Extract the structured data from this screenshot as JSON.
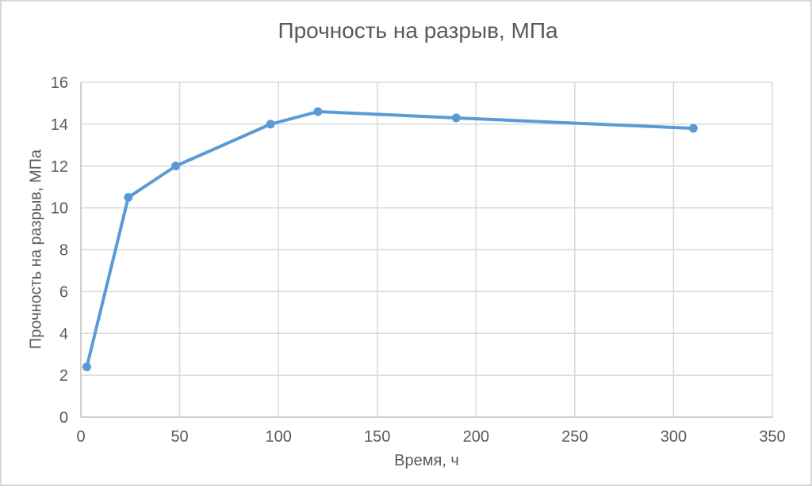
{
  "chart_data": {
    "type": "line",
    "title": "Прочность на разрыв, МПа",
    "xlabel": "Время, ч",
    "ylabel": "Прочность на разрыв, МПа",
    "series": [
      {
        "name": "Прочность на разрыв",
        "x": [
          3,
          24,
          48,
          96,
          120,
          190,
          310
        ],
        "y": [
          2.4,
          10.5,
          12.0,
          14.0,
          14.6,
          14.3,
          13.8
        ]
      }
    ],
    "xlim": [
      0,
      350
    ],
    "ylim": [
      0,
      16
    ],
    "x_ticks": [
      0,
      50,
      100,
      150,
      200,
      250,
      300,
      350
    ],
    "y_ticks": [
      0,
      2,
      4,
      6,
      8,
      10,
      12,
      14,
      16
    ],
    "grid": true,
    "legend": "none",
    "marker": "circle",
    "colors": {
      "line": "#5B9BD5",
      "marker": "#5B9BD5",
      "gridline": "#D9D9D9",
      "axis_line": "#BFBFBF",
      "text": "#595959",
      "title": "#595959",
      "background": "#FFFFFF",
      "border": "#D9D9D9"
    }
  }
}
